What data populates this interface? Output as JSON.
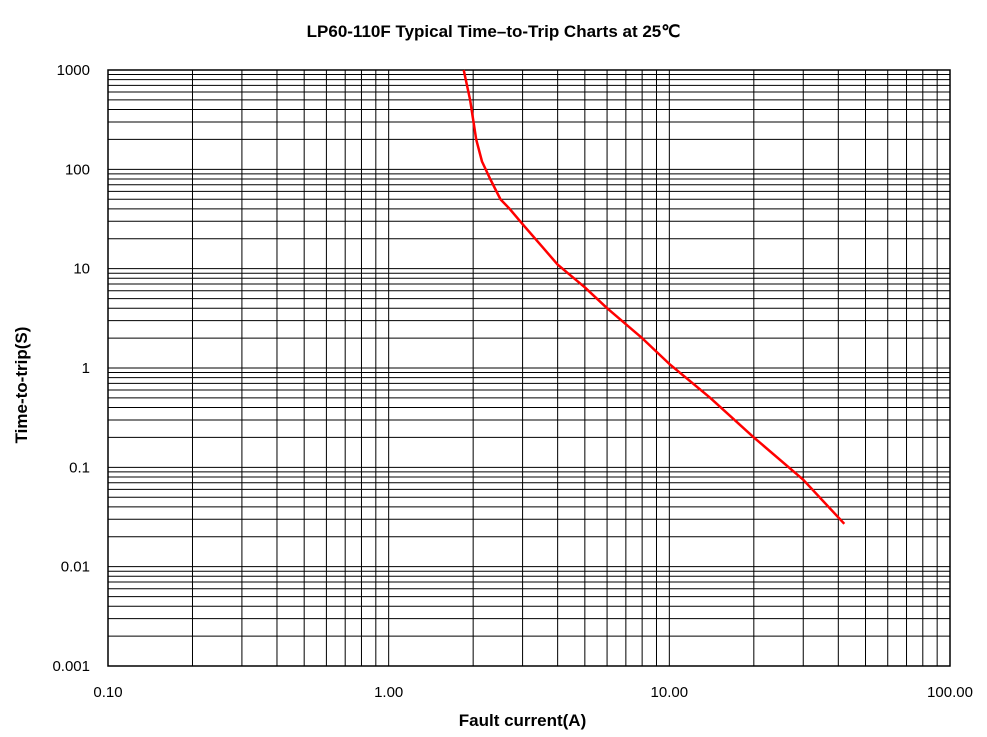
{
  "chart_data": {
    "type": "line",
    "title": "LP60-110F Typical Time–to-Trip Charts at 25℃",
    "xlabel": "Fault current(A)",
    "ylabel": "Time-to-trip(S)",
    "xscale": "log",
    "yscale": "log",
    "xlim": [
      0.1,
      100
    ],
    "ylim": [
      0.001,
      1000
    ],
    "grid": true,
    "x_tick_labels": [
      "0.10",
      "1.00",
      "10.00",
      "100.00"
    ],
    "y_tick_labels": [
      "0.001",
      "0.01",
      "0.1",
      "1",
      "10",
      "100",
      "1000"
    ],
    "series": [
      {
        "color": "#ff0000",
        "x": [
          1.85,
          1.95,
          2.05,
          2.15,
          2.3,
          2.5,
          2.7,
          3.0,
          3.5,
          4.0,
          5.0,
          6.0,
          8.0,
          10.0,
          14.0,
          20.0,
          30.0,
          42.0
        ],
        "y": [
          1000,
          500,
          200,
          120,
          80,
          50,
          40,
          28,
          17,
          11,
          6.5,
          4.0,
          2.0,
          1.1,
          0.5,
          0.2,
          0.075,
          0.027
        ]
      }
    ]
  }
}
